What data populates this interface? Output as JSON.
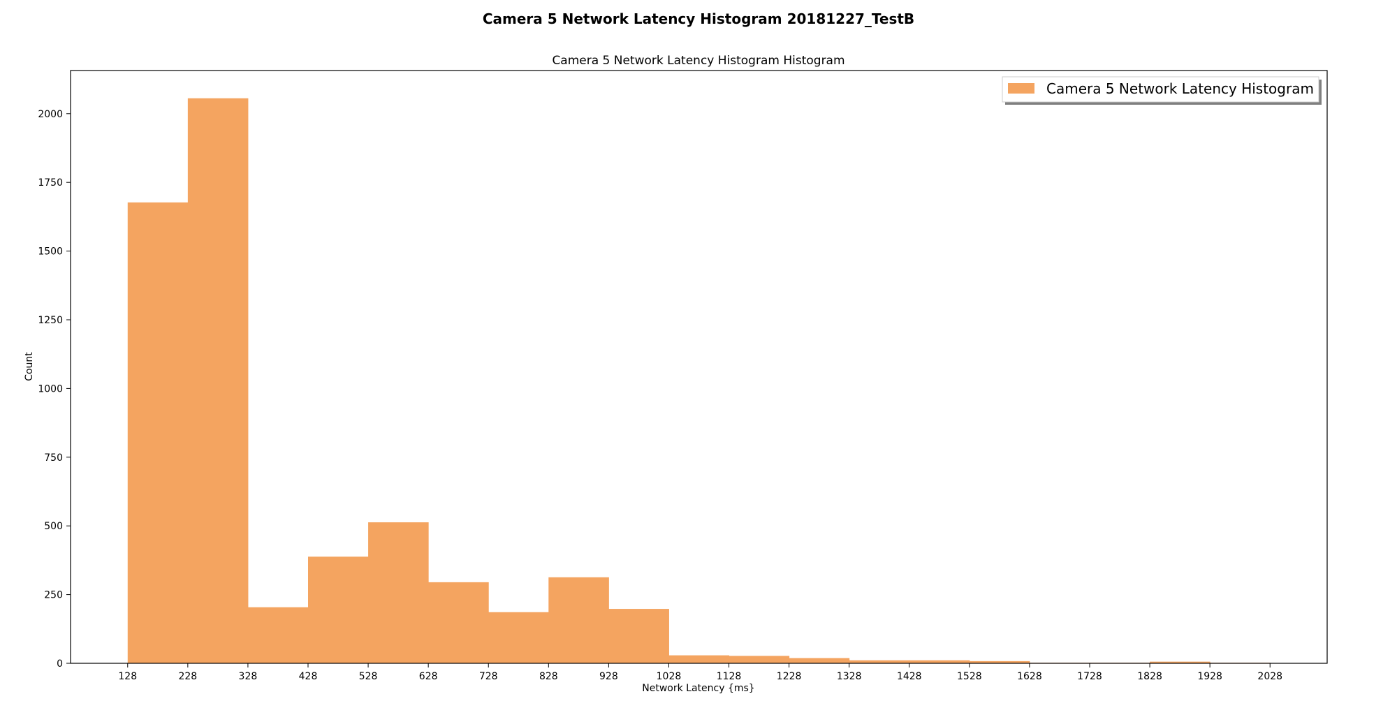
{
  "figure": {
    "suptitle": "Camera 5 Network Latency Histogram 20181227_TestB"
  },
  "chart_data": {
    "type": "bar",
    "title": "Camera 5 Network Latency Histogram Histogram",
    "xlabel": "Network Latency {ms}",
    "ylabel": "Count",
    "bar_color": "#f4a460",
    "legend": {
      "placement": "top-right",
      "entries": [
        "Camera 5 Network Latency Histogram"
      ]
    },
    "grid": false,
    "xlim": [
      33,
      2123
    ],
    "ylim": [
      0,
      2157
    ],
    "xticks": [
      128,
      228,
      328,
      428,
      528,
      628,
      728,
      828,
      928,
      1028,
      1128,
      1228,
      1328,
      1428,
      1528,
      1628,
      1728,
      1828,
      1928,
      2028
    ],
    "yticks": [
      0,
      250,
      500,
      750,
      1000,
      1250,
      1500,
      1750,
      2000
    ],
    "bin_edges": [
      128,
      228,
      328,
      428,
      528,
      628,
      728,
      828,
      928,
      1028,
      1128,
      1228,
      1328,
      1428,
      1528,
      1628,
      1728,
      1828,
      1928,
      2028
    ],
    "series": [
      {
        "name": "Camera 5 Network Latency Histogram",
        "values": [
          1677,
          2056,
          204,
          388,
          513,
          295,
          186,
          313,
          198,
          29,
          27,
          19,
          11,
          11,
          8,
          2,
          2,
          6,
          2
        ]
      }
    ]
  }
}
